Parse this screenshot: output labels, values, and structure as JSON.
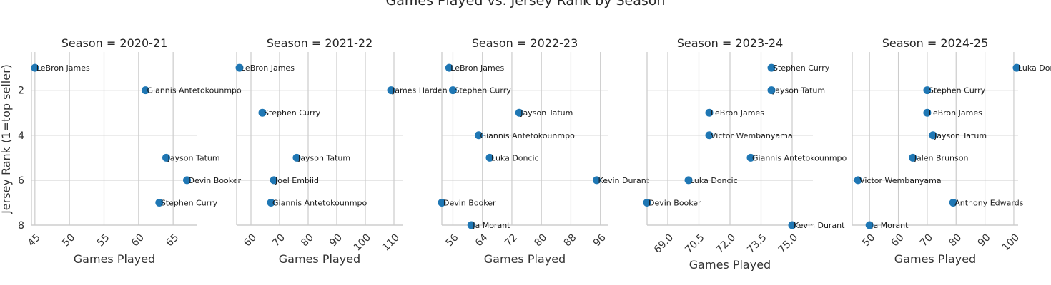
{
  "chart_data": {
    "type": "scatter",
    "title": "Games Played vs. Jersey Rank by Season",
    "ylabel": "Jersey Rank (1=top seller)",
    "xlabel": "Games Played",
    "ylim": [
      8,
      0.3
    ],
    "yticks": [
      2,
      4,
      6,
      8
    ],
    "grid": true,
    "marker_color": "#1f77b4",
    "panels": [
      {
        "title": "Season = 2020-21",
        "xlim": [
          44.5,
          68.5
        ],
        "xticks": [
          45,
          50,
          55,
          60,
          65
        ],
        "points": [
          {
            "label": "LeBron James",
            "x": 45,
            "y": 1
          },
          {
            "label": "Giannis Antetokounmpo",
            "x": 61,
            "y": 2
          },
          {
            "label": "Jayson Tatum",
            "x": 64,
            "y": 5
          },
          {
            "label": "Devin Booker",
            "x": 67,
            "y": 6
          },
          {
            "label": "Stephen Curry",
            "x": 63,
            "y": 7
          }
        ]
      },
      {
        "title": "Season = 2021-22",
        "xlim": [
          55,
          113
        ],
        "xticks": [
          60,
          70,
          80,
          90,
          100,
          110
        ],
        "points": [
          {
            "label": "LeBron James",
            "x": 56,
            "y": 1
          },
          {
            "label": "James Harden",
            "x": 109,
            "y": 2
          },
          {
            "label": "Stephen Curry",
            "x": 64,
            "y": 3
          },
          {
            "label": "Jayson Tatum",
            "x": 76,
            "y": 5
          },
          {
            "label": "Joel Embiid",
            "x": 68,
            "y": 6
          },
          {
            "label": "Giannis Antetokounmpo",
            "x": 67,
            "y": 7
          }
        ]
      },
      {
        "title": "Season = 2022-23",
        "xlim": [
          53,
          98
        ],
        "xticks": [
          56,
          64,
          72,
          80,
          88,
          96
        ],
        "points": [
          {
            "label": "LeBron James",
            "x": 55,
            "y": 1
          },
          {
            "label": "Stephen Curry",
            "x": 56,
            "y": 2
          },
          {
            "label": "Jayson Tatum",
            "x": 74,
            "y": 3
          },
          {
            "label": "Giannis Antetokounmpo",
            "x": 63,
            "y": 4
          },
          {
            "label": "Luka Doncic",
            "x": 66,
            "y": 5
          },
          {
            "label": "Kevin Durant",
            "x": 95,
            "y": 6
          },
          {
            "label": "Devin Booker",
            "x": 53,
            "y": 7
          },
          {
            "label": "Ja Morant",
            "x": 61,
            "y": 8
          }
        ]
      },
      {
        "title": "Season = 2023-24",
        "xlim": [
          68,
          76
        ],
        "xticks": [
          69.0,
          70.5,
          72.0,
          73.5,
          75.0
        ],
        "tick_labels": [
          "69.0",
          "70.5",
          "72.0",
          "73.5",
          "75.0"
        ],
        "points": [
          {
            "label": "Stephen Curry",
            "x": 74,
            "y": 1
          },
          {
            "label": "Jayson Tatum",
            "x": 74,
            "y": 2
          },
          {
            "label": "LeBron James",
            "x": 71,
            "y": 3
          },
          {
            "label": "Victor Wembanyama",
            "x": 71,
            "y": 4
          },
          {
            "label": "Giannis Antetokounmpo",
            "x": 73,
            "y": 5
          },
          {
            "label": "Luka Doncic",
            "x": 70,
            "y": 6
          },
          {
            "label": "Devin Booker",
            "x": 68,
            "y": 7
          },
          {
            "label": "Kevin Durant",
            "x": 75,
            "y": 8
          }
        ]
      },
      {
        "title": "Season = 2024-25",
        "xlim": [
          44,
          101.5
        ],
        "xticks": [
          50,
          60,
          70,
          80,
          90,
          100
        ],
        "points": [
          {
            "label": "Luka Doncic",
            "x": 101,
            "y": 1
          },
          {
            "label": "Stephen Curry",
            "x": 70,
            "y": 2
          },
          {
            "label": "LeBron James",
            "x": 70,
            "y": 3
          },
          {
            "label": "Jayson Tatum",
            "x": 72,
            "y": 4
          },
          {
            "label": "Jalen Brunson",
            "x": 65,
            "y": 5
          },
          {
            "label": "Victor Wembanyama",
            "x": 46,
            "y": 6
          },
          {
            "label": "Anthony Edwards",
            "x": 79,
            "y": 7
          },
          {
            "label": "Ja Morant",
            "x": 50,
            "y": 8
          }
        ]
      }
    ]
  }
}
